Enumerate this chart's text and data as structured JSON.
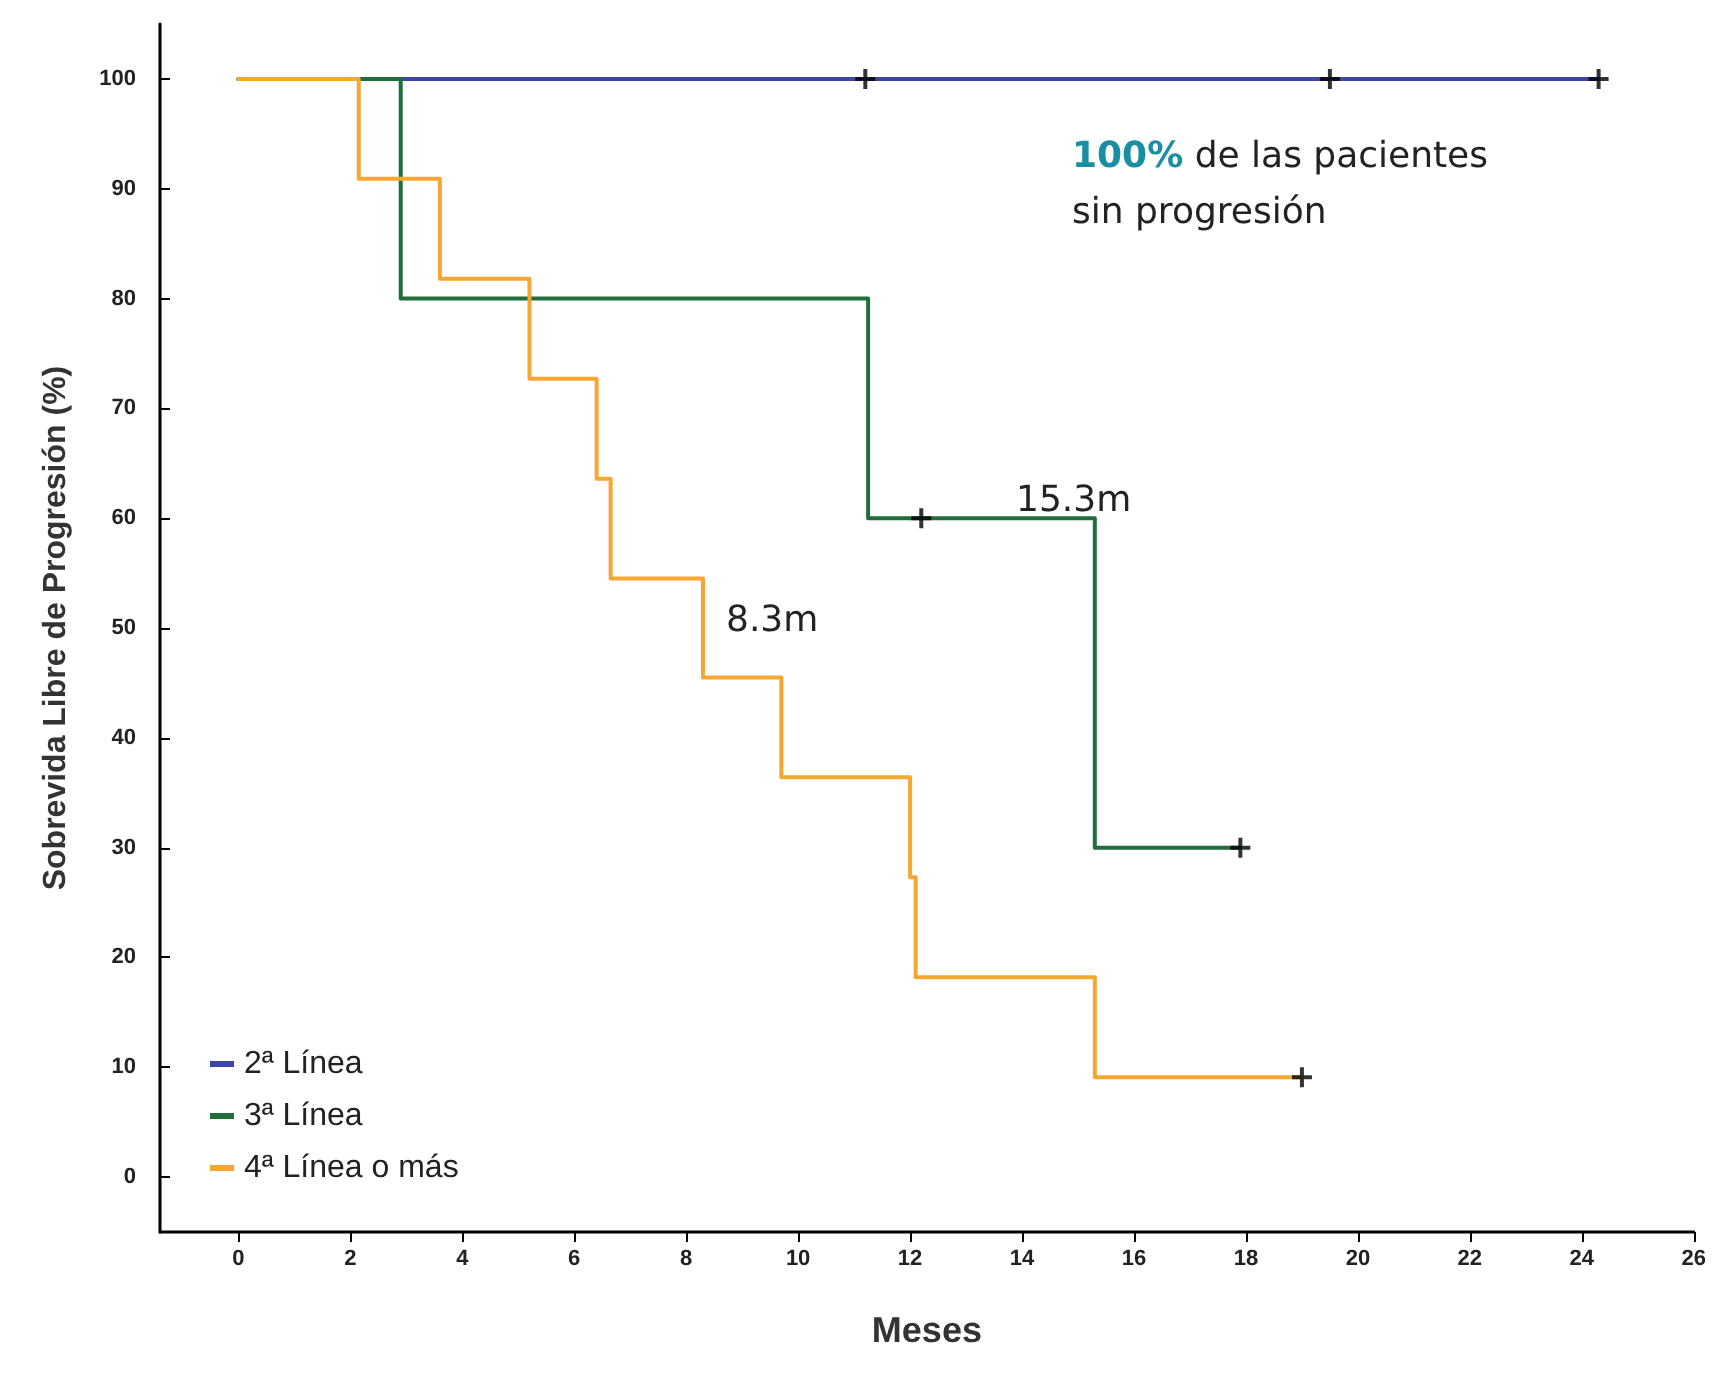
{
  "chart_data": {
    "type": "step",
    "xlabel": "Meses",
    "ylabel": "Sobrevida Libre de Progresión (%)",
    "xlim": [
      -1.4,
      26
    ],
    "xticks": [
      0,
      2,
      4,
      6,
      8,
      10,
      12,
      14,
      16,
      18,
      20,
      22,
      24,
      26
    ],
    "ylim": [
      -5,
      105
    ],
    "yticks": [
      0,
      10,
      20,
      30,
      40,
      50,
      60,
      70,
      80,
      90,
      100
    ],
    "grid": false,
    "legend": "bottom left",
    "marker": "none",
    "line_style": "solid",
    "series": [
      {
        "name": "2ª Línea",
        "color": "#3b44a8",
        "x": [
          0,
          24.3
        ],
        "values": [
          100,
          100
        ]
      },
      {
        "name": "3ª Línea",
        "color": "#1f6e3c",
        "x": [
          0,
          2.9,
          11.25,
          15.3,
          17.9
        ],
        "values": [
          100,
          80,
          60,
          30,
          30
        ]
      },
      {
        "name": "4ª Línea o más",
        "color": "#f7a630",
        "x": [
          0,
          2.15,
          3.6,
          5.2,
          6.4,
          6.65,
          8.3,
          9.7,
          12.0,
          12.1,
          15.3,
          19.0
        ],
        "values": [
          100,
          90.9,
          81.8,
          72.7,
          63.6,
          54.5,
          45.5,
          36.4,
          27.3,
          18.2,
          9.1,
          9.1
        ]
      },
      {
        "type": "scatter",
        "marker": "cross",
        "color": "#000000",
        "x": [
          11.2,
          19.5,
          24.3,
          12.2,
          17.9,
          19.0
        ],
        "values": [
          100,
          100,
          100,
          60,
          30,
          9.1
        ]
      }
    ],
    "annotations": [
      "100% de las pacientes\nsin progresión",
      "15.3m",
      "8.3m"
    ]
  }
}
